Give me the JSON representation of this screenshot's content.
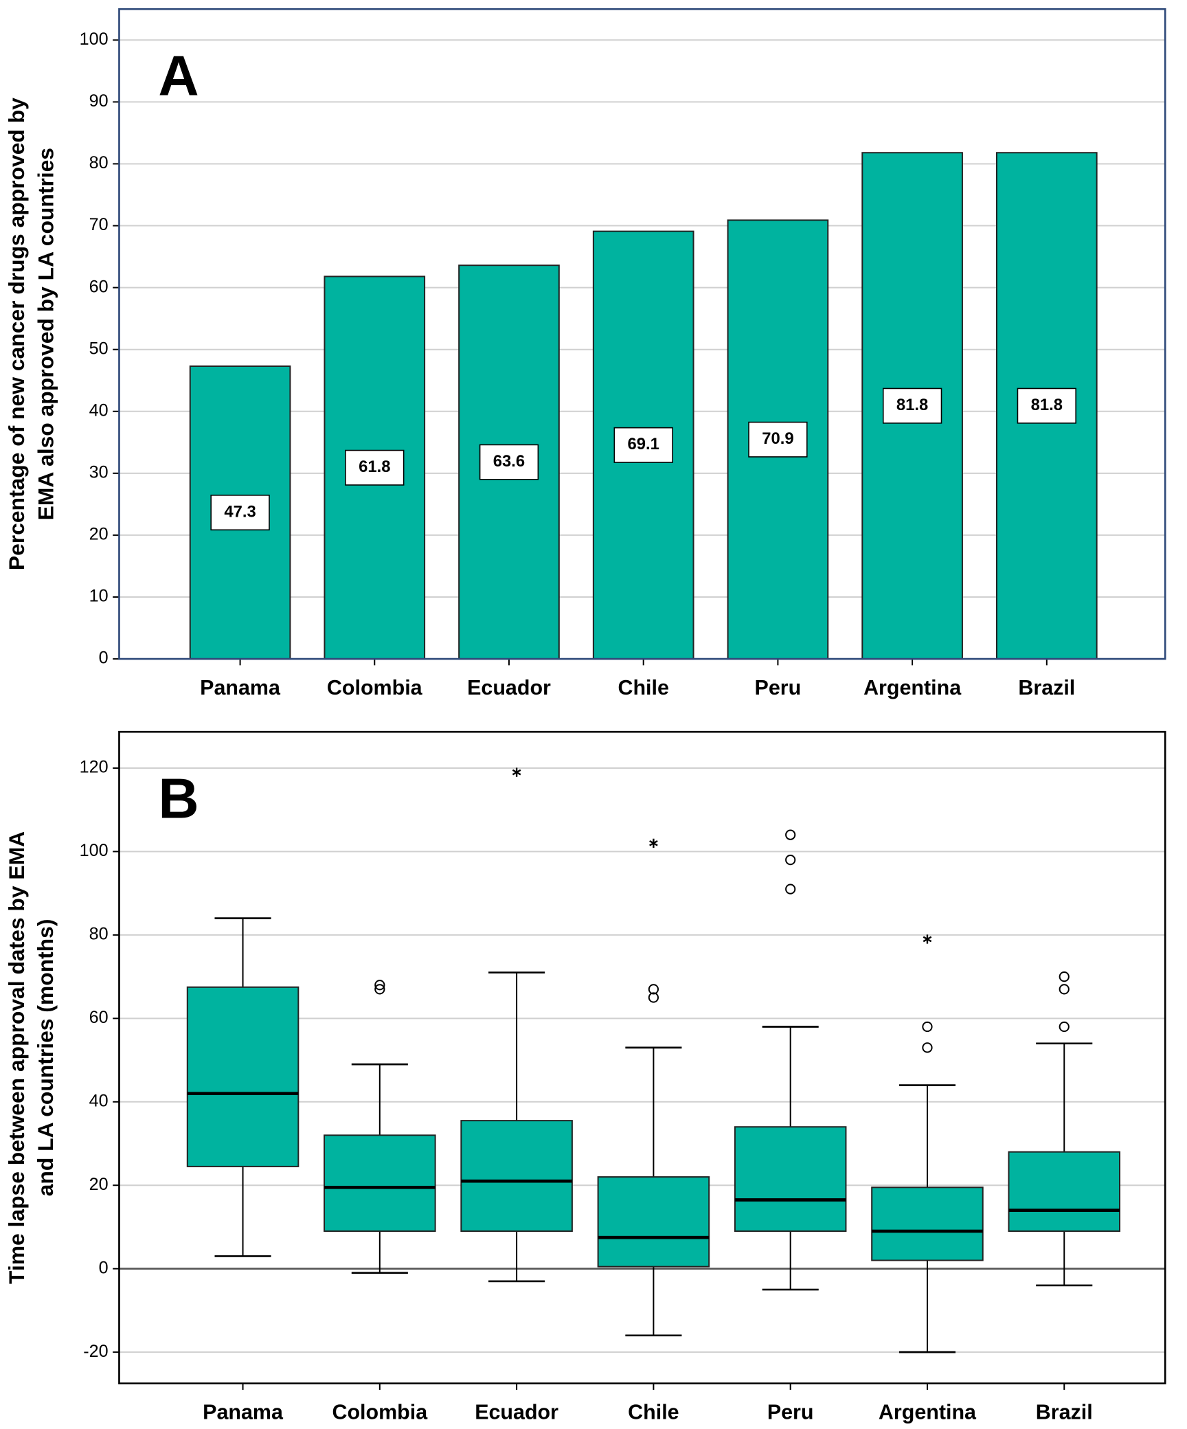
{
  "chart_data": [
    {
      "type": "bar",
      "panel_label": "A",
      "ylabel": [
        "Percentage of new cancer drugs approved by",
        "EMA also approved by LA countries"
      ],
      "categories": [
        "Panama",
        "Colombia",
        "Ecuador",
        "Chile",
        "Peru",
        "Argentina",
        "Brazil"
      ],
      "values": [
        47.3,
        61.8,
        63.6,
        69.1,
        70.9,
        81.8,
        81.8
      ],
      "color": "#00b39f",
      "ylim": [
        0,
        105
      ],
      "yticks": [
        0,
        10,
        20,
        30,
        40,
        50,
        60,
        70,
        80,
        90,
        100
      ],
      "grid": true
    },
    {
      "type": "box",
      "panel_label": "B",
      "ylabel": [
        "Time lapse between approval dates by EMA",
        "and LA countries (months)"
      ],
      "categories": [
        "Panama",
        "Colombia",
        "Ecuador",
        "Chile",
        "Peru",
        "Argentina",
        "Brazil"
      ],
      "boxes": [
        {
          "whislo": 3,
          "q1": 24.5,
          "med": 42,
          "q3": 67.5,
          "whishi": 84,
          "outliers": [],
          "extremes": []
        },
        {
          "whislo": -1,
          "q1": 9,
          "med": 19.5,
          "q3": 32,
          "whishi": 49,
          "outliers": [
            67,
            68
          ],
          "extremes": []
        },
        {
          "whislo": -3,
          "q1": 9,
          "med": 21,
          "q3": 35.5,
          "whishi": 71,
          "outliers": [],
          "extremes": [
            119
          ]
        },
        {
          "whislo": -16,
          "q1": 0.5,
          "med": 7.5,
          "q3": 22,
          "whishi": 53,
          "outliers": [
            65,
            67
          ],
          "extremes": [
            102
          ]
        },
        {
          "whislo": -5,
          "q1": 9,
          "med": 16.5,
          "q3": 34,
          "whishi": 58,
          "outliers": [
            91,
            98,
            104
          ],
          "extremes": []
        },
        {
          "whislo": -20,
          "q1": 2,
          "med": 9,
          "q3": 19.5,
          "whishi": 44,
          "outliers": [
            53,
            58
          ],
          "extremes": [
            79
          ]
        },
        {
          "whislo": -4,
          "q1": 9,
          "med": 14,
          "q3": 28,
          "whishi": 54,
          "outliers": [
            58,
            67,
            70
          ],
          "extremes": []
        }
      ],
      "color": "#00b39f",
      "ylim": [
        -27.5,
        128.7
      ],
      "yticks": [
        -20,
        0,
        20,
        40,
        60,
        80,
        100,
        120
      ],
      "grid": true
    }
  ]
}
